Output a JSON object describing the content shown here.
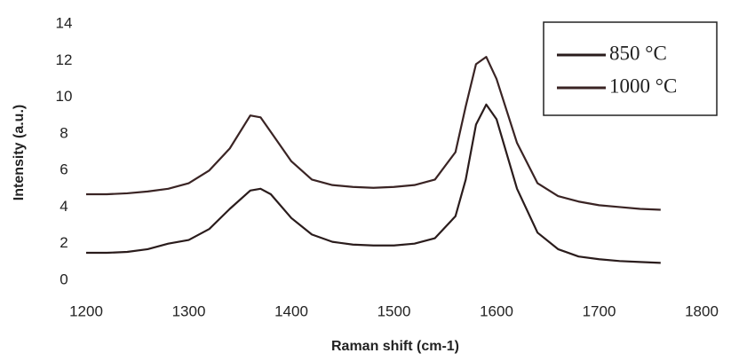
{
  "chart_data": {
    "type": "line",
    "x_label": "Raman shift (cm-1)",
    "y_label": "Intensity (a.u.)",
    "x": [
      1200,
      1220,
      1240,
      1260,
      1280,
      1300,
      1320,
      1340,
      1360,
      1370,
      1380,
      1400,
      1420,
      1440,
      1460,
      1480,
      1500,
      1520,
      1540,
      1560,
      1570,
      1580,
      1590,
      1600,
      1620,
      1640,
      1660,
      1680,
      1700,
      1720,
      1740,
      1760
    ],
    "series": [
      {
        "name": "850 °C",
        "color": "#2a1c1c",
        "values": [
          1.5,
          1.5,
          1.55,
          1.7,
          2.0,
          2.2,
          2.8,
          3.9,
          4.9,
          5.0,
          4.7,
          3.4,
          2.5,
          2.1,
          1.95,
          1.9,
          1.9,
          2.0,
          2.3,
          3.5,
          5.5,
          8.5,
          9.6,
          8.8,
          5.0,
          2.6,
          1.7,
          1.3,
          1.15,
          1.05,
          1.0,
          0.95
        ]
      },
      {
        "name": "1000 °C",
        "color": "#3a2424",
        "values": [
          4.7,
          4.7,
          4.75,
          4.85,
          5.0,
          5.3,
          6.0,
          7.2,
          9.0,
          8.9,
          8.1,
          6.5,
          5.5,
          5.2,
          5.1,
          5.05,
          5.1,
          5.2,
          5.5,
          7.0,
          9.5,
          11.8,
          12.2,
          11.0,
          7.5,
          5.3,
          4.6,
          4.3,
          4.1,
          4.0,
          3.9,
          3.85
        ]
      }
    ],
    "xlim": [
      1200,
      1800
    ],
    "xticks": [
      1200,
      1300,
      1400,
      1500,
      1600,
      1700,
      1800
    ],
    "ylim": [
      0,
      14
    ],
    "yticks": [
      0,
      2,
      4,
      6,
      8,
      10,
      12,
      14
    ],
    "grid": false,
    "legend": "upper right"
  }
}
